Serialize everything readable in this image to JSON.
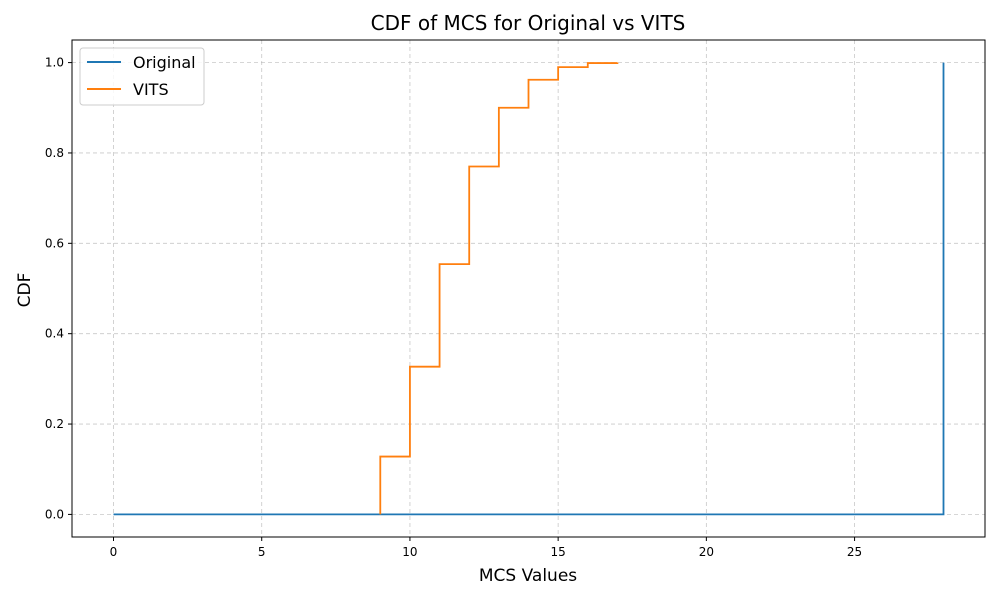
{
  "chart_data": {
    "type": "line",
    "title": "CDF of MCS for Original vs VITS",
    "xlabel": "MCS Values",
    "ylabel": "CDF",
    "xlim": [
      -1.4,
      29.4
    ],
    "ylim": [
      -0.05,
      1.05
    ],
    "xticks": [
      0,
      5,
      10,
      15,
      20,
      25
    ],
    "yticks": [
      0.0,
      0.2,
      0.4,
      0.6,
      0.8,
      1.0
    ],
    "xtick_labels": [
      "0",
      "5",
      "10",
      "15",
      "20",
      "25"
    ],
    "ytick_labels": [
      "0.0",
      "0.2",
      "0.4",
      "0.6",
      "0.8",
      "1.0"
    ],
    "grid": true,
    "legend_position": "top-left",
    "step": "post",
    "series": [
      {
        "name": "Original",
        "color": "#1f77b4",
        "x": [
          0,
          28,
          28
        ],
        "y": [
          0.0,
          0.0,
          1.0
        ]
      },
      {
        "name": "VITS",
        "color": "#ff7f0e",
        "x": [
          9,
          9,
          10,
          11,
          12,
          13,
          14,
          15,
          16,
          17
        ],
        "y": [
          0.0,
          0.128,
          0.327,
          0.554,
          0.77,
          0.9,
          0.962,
          0.99,
          0.999,
          1.0
        ]
      }
    ]
  }
}
